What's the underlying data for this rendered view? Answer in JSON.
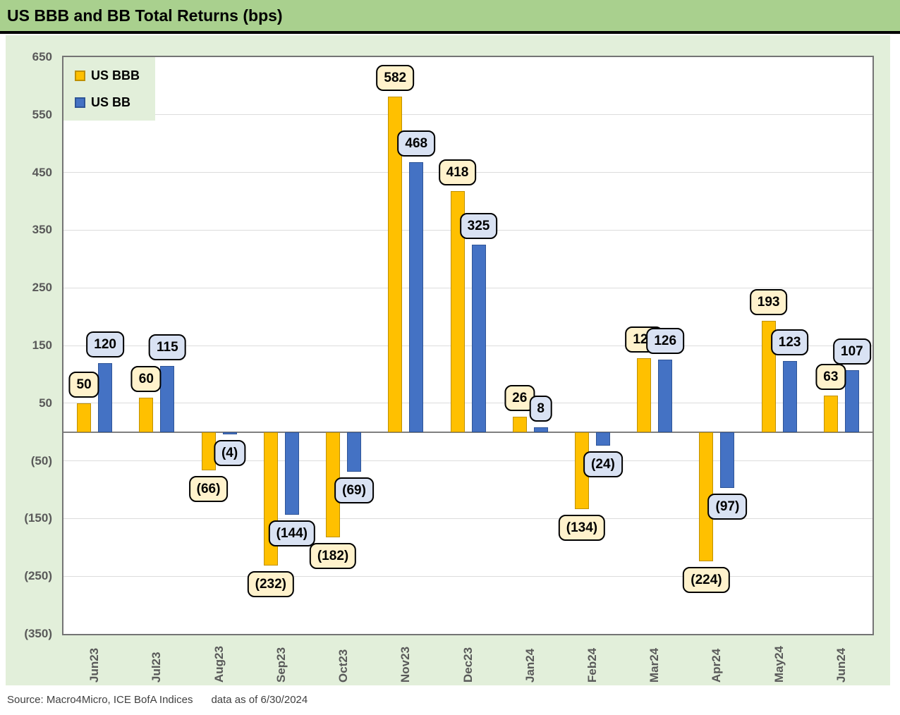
{
  "title": "US BBB and BB Total Returns (bps)",
  "footer": {
    "source": "Source: Macro4Micro, ICE BofA Indices",
    "as_of": "data as of 6/30/2024"
  },
  "colors": {
    "titlebar_bg": "#A9D08E",
    "panel_bg": "#E2EFDA",
    "plot_border": "#747474",
    "gridline": "#DCDCDC",
    "zero_line": "#7F7F7F",
    "axis_text": "#595959",
    "source_text": "#404040",
    "label_border": "#000000"
  },
  "chart_data": {
    "type": "bar",
    "title": "US BBB and BB Total Returns (bps)",
    "categories": [
      "Jun23",
      "Jul23",
      "Aug23",
      "Sep23",
      "Oct23",
      "Nov23",
      "Dec23",
      "Jan24",
      "Feb24",
      "Mar24",
      "Apr24",
      "May24",
      "Jun24"
    ],
    "series": [
      {
        "name": "US BBB",
        "color": "#FFC000",
        "border": "#BF9000",
        "label_bg": "#FFF2CC",
        "values": [
          50,
          60,
          -66,
          -232,
          -182,
          582,
          418,
          26,
          -134,
          128,
          -224,
          193,
          63
        ]
      },
      {
        "name": "US BB",
        "color": "#4472C4",
        "border": "#2F5597",
        "label_bg": "#D9E2F3",
        "values": [
          120,
          115,
          -4,
          -144,
          -69,
          468,
          325,
          8,
          -24,
          126,
          -97,
          123,
          107
        ]
      }
    ],
    "ylim": [
      -350,
      650
    ],
    "yticks": [
      650,
      550,
      450,
      350,
      250,
      150,
      50,
      -50,
      -150,
      -250,
      -350
    ],
    "ytick_step": 100,
    "negative_format": "parentheses",
    "grid": true,
    "legend_position": "top-left",
    "xlabel": "",
    "ylabel": ""
  }
}
